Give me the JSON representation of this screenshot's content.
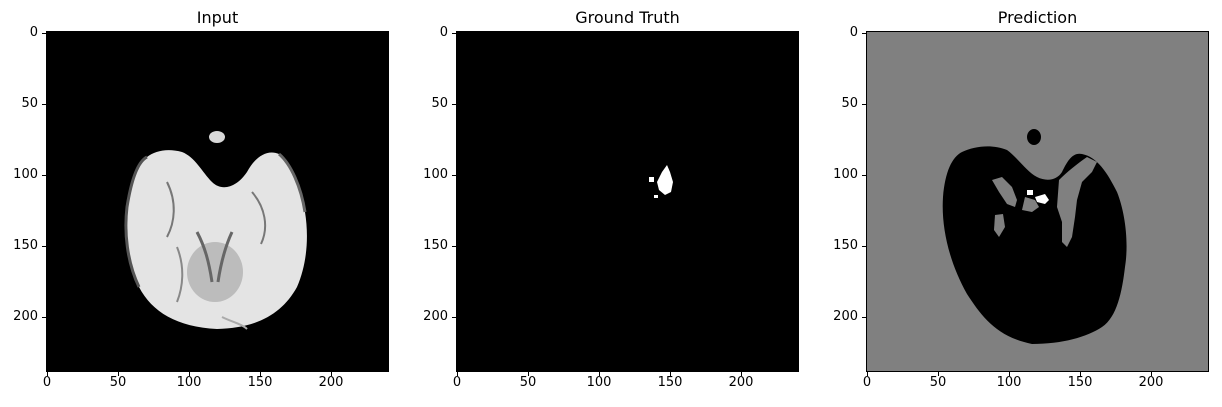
{
  "panels": [
    {
      "title": "Input"
    },
    {
      "title": "Ground Truth"
    },
    {
      "title": "Prediction"
    }
  ],
  "axes": {
    "y_ticks": [
      "0",
      "50",
      "100",
      "150",
      "200"
    ],
    "x_ticks": [
      "0",
      "50",
      "100",
      "150",
      "200"
    ]
  },
  "colors": {
    "background": "#000000",
    "prediction_background": "#808080",
    "brain_tissue": "#e6e6e6",
    "mask": "#ffffff"
  }
}
